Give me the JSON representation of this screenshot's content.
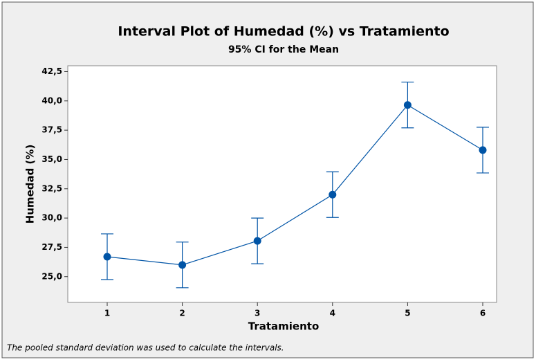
{
  "chart_data": {
    "type": "interval",
    "title": "Interval Plot of Humedad (%) vs Tratamiento",
    "subtitle": "95% CI for the Mean",
    "x_label": "Tratamiento",
    "y_label": "Humedad (%)",
    "footnote": "The pooled standard deviation was used to calculate the intervals.",
    "categories": [
      "1",
      "2",
      "3",
      "4",
      "5",
      "6"
    ],
    "values": [
      26.7,
      26.0,
      28.05,
      32.0,
      39.65,
      35.8
    ],
    "errors": [
      1.95,
      1.95,
      1.95,
      1.95,
      1.95,
      1.95
    ],
    "color": "#0054a6",
    "ylim": [
      22.8,
      43.0
    ],
    "yticks": [
      {
        "value": 25,
        "label": "25,0"
      },
      {
        "value": 27.5,
        "label": "27,5"
      },
      {
        "value": 30,
        "label": "30,0"
      },
      {
        "value": 32.5,
        "label": "32,5"
      },
      {
        "value": 35,
        "label": "35,0"
      },
      {
        "value": 37.5,
        "label": "37,5"
      },
      {
        "value": 40,
        "label": "40,0"
      },
      {
        "value": 42.5,
        "label": "42,5"
      }
    ]
  }
}
